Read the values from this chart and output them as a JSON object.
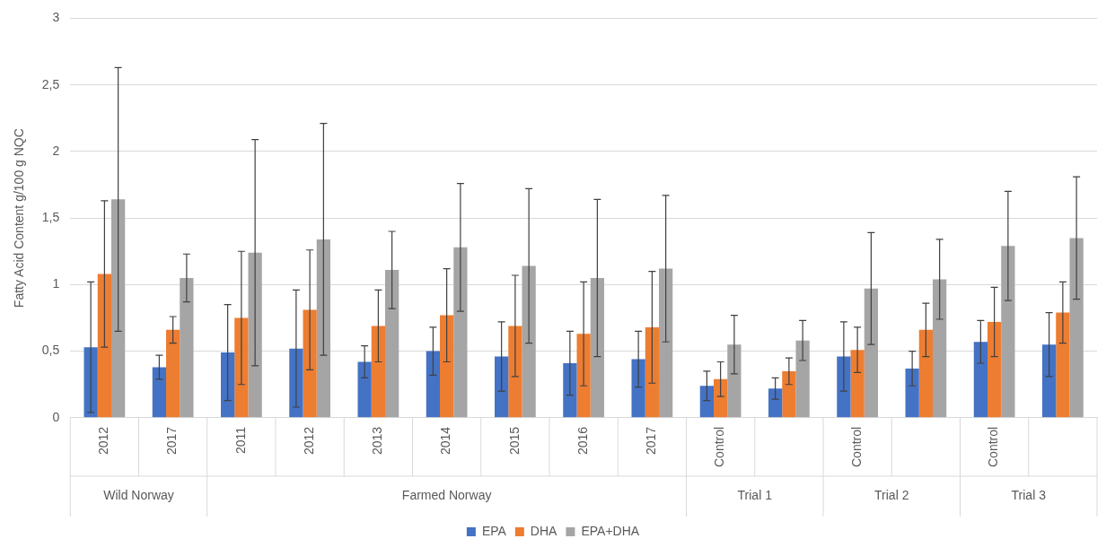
{
  "chart_data": {
    "type": "bar",
    "ylabel": "Fatty Acid Content g/100 g NQC",
    "categories": [
      "2012",
      "2017",
      "2011",
      "2012",
      "2013",
      "2014",
      "2015",
      "2016",
      "2017",
      "Control",
      null,
      "Control",
      null,
      "Control",
      null
    ],
    "series": [
      {
        "name": "EPA",
        "color": "#4472c4",
        "values": [
          0.53,
          0.38,
          0.49,
          0.52,
          0.42,
          0.5,
          0.46,
          0.41,
          0.44,
          0.24,
          0.22,
          0.46,
          0.37,
          0.57,
          0.55
        ],
        "errors": [
          0.49,
          0.09,
          0.36,
          0.44,
          0.12,
          0.18,
          0.26,
          0.24,
          0.21,
          0.11,
          0.08,
          0.26,
          0.13,
          0.16,
          0.24
        ]
      },
      {
        "name": "DHA",
        "color": "#ed7d31",
        "values": [
          1.08,
          0.66,
          0.75,
          0.81,
          0.69,
          0.77,
          0.69,
          0.63,
          0.68,
          0.29,
          0.35,
          0.51,
          0.66,
          0.72,
          0.79
        ],
        "errors": [
          0.55,
          0.1,
          0.5,
          0.45,
          0.27,
          0.35,
          0.38,
          0.39,
          0.42,
          0.13,
          0.1,
          0.17,
          0.2,
          0.26,
          0.23
        ]
      },
      {
        "name": "EPA+DHA",
        "color": "#a5a5a5",
        "values": [
          1.64,
          1.05,
          1.24,
          1.34,
          1.11,
          1.28,
          1.14,
          1.05,
          1.12,
          0.55,
          0.58,
          0.97,
          1.04,
          1.29,
          1.35
        ],
        "errors": [
          0.99,
          0.18,
          0.85,
          0.87,
          0.29,
          0.48,
          0.58,
          0.59,
          0.55,
          0.22,
          0.15,
          0.42,
          0.3,
          0.41,
          0.46
        ]
      }
    ],
    "ylim": [
      0,
      3
    ],
    "yticks": [
      0,
      {
        "value": 0.5,
        "label": "0,5"
      },
      1,
      {
        "value": 1.5,
        "label": "1,5"
      },
      2,
      {
        "value": 2.5,
        "label": "2,5"
      },
      3
    ],
    "grid": "y",
    "legend": "bottom",
    "annotations": [
      "Wild Norway",
      "Farmed Norway",
      "Trial 1",
      "Trial 2",
      "Trial 3"
    ]
  }
}
